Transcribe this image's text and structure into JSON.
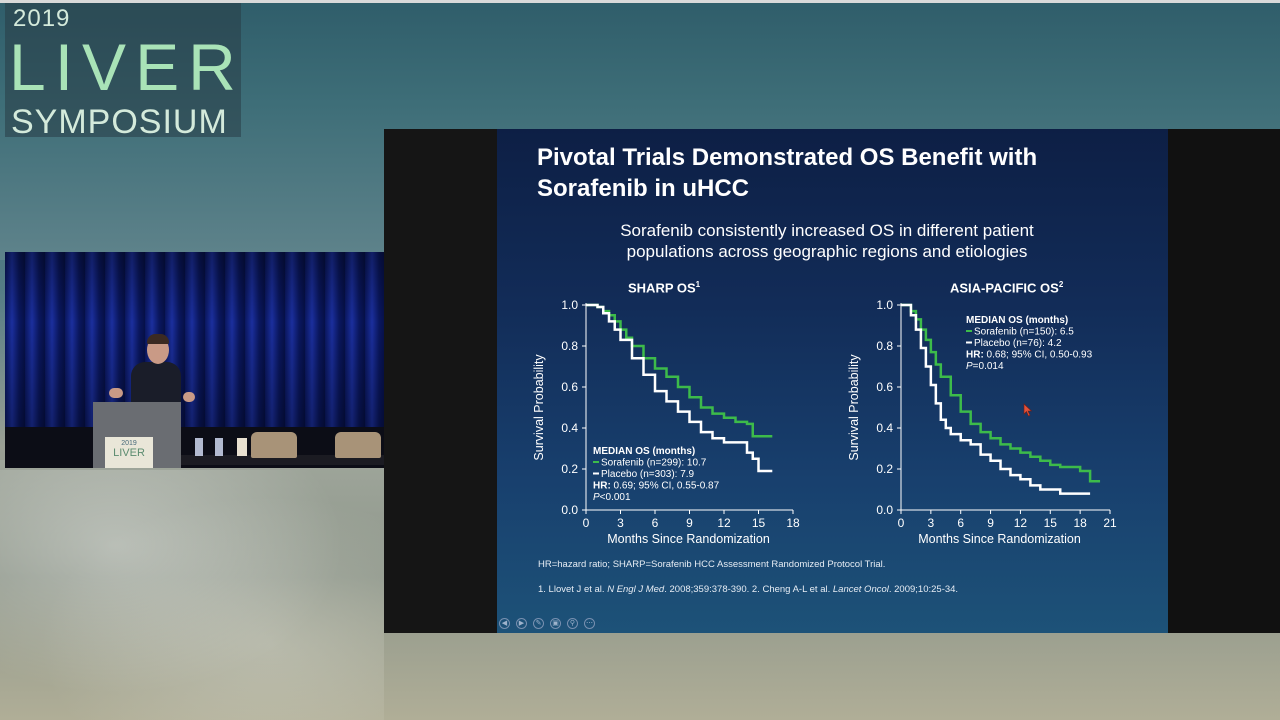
{
  "logo": {
    "year": "2019",
    "liver": "LIVER",
    "symposium": "SYMPOSIUM"
  },
  "video": {
    "podium_year": "2019",
    "podium_word": "LIVER"
  },
  "slide": {
    "title_line1": "Pivotal Trials Demonstrated OS Benefit with",
    "title_line2": "Sorafenib in uHCC",
    "subtitle_line1": "Sorafenib consistently increased OS in different patient",
    "subtitle_line2": "populations across geographic regions and etiologies",
    "footnote_abbrev": "HR=hazard ratio; SHARP=Sorafenib HCC Assessment Randomized Protocol Trial.",
    "ref_part1": "1. Llovet J et al. ",
    "ref_journal1": "N Engl J Med",
    "ref_part2": ". 2008;359:378-390. 2. Cheng A-L et al. ",
    "ref_journal2": "Lancet Oncol",
    "ref_part3": ". 2009;10:25-34.",
    "controls": [
      "prev-icon",
      "next-icon",
      "pen-icon",
      "slides-icon",
      "zoom-icon",
      "more-icon"
    ]
  },
  "chart_data": [
    {
      "type": "line",
      "title": "SHARP OS",
      "title_sup": "1",
      "xlabel": "Months Since Randomization",
      "ylabel": "Survival Probability",
      "xlim": [
        0,
        18
      ],
      "ylim": [
        0,
        1.0
      ],
      "xticks": [
        "0",
        "3",
        "6",
        "9",
        "12",
        "15",
        "18"
      ],
      "yticks": [
        "0.0",
        "0.2",
        "0.4",
        "0.6",
        "0.8",
        "1.0"
      ],
      "series": [
        {
          "name": "Sorafenib (n=299): 10.7",
          "color": "#3dbb4a",
          "x": [
            0,
            0.5,
            1,
            1.5,
            2,
            2.5,
            3,
            3.5,
            4,
            5,
            6,
            7,
            8,
            9,
            10,
            11,
            12,
            13,
            14,
            14.5,
            16.2
          ],
          "y": [
            1.0,
            1.0,
            0.99,
            0.97,
            0.95,
            0.92,
            0.88,
            0.84,
            0.8,
            0.74,
            0.69,
            0.65,
            0.6,
            0.55,
            0.5,
            0.47,
            0.45,
            0.43,
            0.42,
            0.36,
            0.36
          ]
        },
        {
          "name": "Placebo (n=303): 7.9",
          "color": "#ffffff",
          "x": [
            0,
            0.5,
            1,
            1.5,
            2,
            2.5,
            3,
            4,
            5,
            6,
            7,
            8,
            9,
            10,
            11,
            12,
            13,
            14,
            14.5,
            15,
            16.2
          ],
          "y": [
            1.0,
            1.0,
            0.99,
            0.96,
            0.92,
            0.88,
            0.83,
            0.74,
            0.66,
            0.58,
            0.53,
            0.48,
            0.43,
            0.38,
            0.35,
            0.33,
            0.33,
            0.28,
            0.25,
            0.19,
            0.19
          ]
        }
      ],
      "annotation": {
        "header": "MEDIAN OS (months)",
        "lines": [
          "Sorafenib (n=299): 10.7",
          "Placebo (n=303): 7.9"
        ],
        "hr_label": "HR:",
        "hr_text": "0.69; 95% CI, 0.55-0.87",
        "p_label": "P",
        "p_text": "<0.001"
      },
      "legend": "lower-left",
      "grid": false
    },
    {
      "type": "line",
      "title": "ASIA-PACIFIC OS",
      "title_sup": "2",
      "xlabel": "Months Since Randomization",
      "ylabel": "Survival Probability",
      "xlim": [
        0,
        21
      ],
      "ylim": [
        0,
        1.0
      ],
      "xticks": [
        "0",
        "3",
        "6",
        "9",
        "12",
        "15",
        "18",
        "21"
      ],
      "yticks": [
        "0.0",
        "0.2",
        "0.4",
        "0.6",
        "0.8",
        "1.0"
      ],
      "series": [
        {
          "name": "Sorafenib (n=150): 6.5",
          "color": "#3dbb4a",
          "x": [
            0,
            0.5,
            1,
            1.5,
            2,
            2.5,
            3,
            3.5,
            4,
            5,
            6,
            7,
            8,
            9,
            10,
            11,
            12,
            13,
            14,
            15,
            16,
            17,
            18,
            19,
            20
          ],
          "y": [
            1.0,
            1.0,
            0.97,
            0.93,
            0.88,
            0.83,
            0.77,
            0.71,
            0.65,
            0.56,
            0.48,
            0.42,
            0.38,
            0.35,
            0.32,
            0.3,
            0.28,
            0.26,
            0.24,
            0.22,
            0.21,
            0.21,
            0.19,
            0.14,
            0.14
          ]
        },
        {
          "name": "Placebo (n=76): 4.2",
          "color": "#ffffff",
          "x": [
            0,
            0.5,
            1,
            1.5,
            2,
            2.5,
            3,
            3.5,
            4,
            4.5,
            5,
            6,
            7,
            8,
            9,
            10,
            11,
            12,
            13,
            14,
            15,
            16,
            17,
            18,
            19
          ],
          "y": [
            1.0,
            1.0,
            0.95,
            0.88,
            0.79,
            0.7,
            0.61,
            0.52,
            0.44,
            0.4,
            0.37,
            0.34,
            0.32,
            0.27,
            0.24,
            0.2,
            0.17,
            0.15,
            0.12,
            0.1,
            0.1,
            0.08,
            0.08,
            0.08,
            0.08
          ]
        }
      ],
      "annotation": {
        "header": "MEDIAN OS (months)",
        "lines": [
          "Sorafenib (n=150): 6.5",
          "Placebo (n=76): 4.2"
        ],
        "hr_label": "HR:",
        "hr_text": "0.68; 95% CI, 0.50-0.93",
        "p_label": "P",
        "p_text": "=0.014"
      },
      "legend": "top-right",
      "grid": false
    }
  ]
}
